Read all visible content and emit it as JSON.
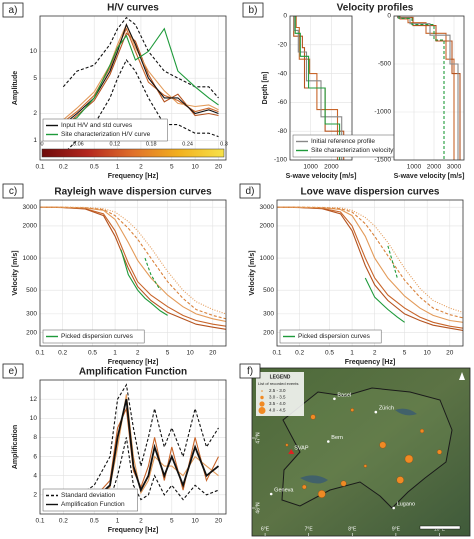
{
  "chart_data": [
    {
      "type": "line",
      "label": "a)",
      "title": "H/V curves",
      "xlabel": "Frequency [Hz]",
      "ylabel": "Amplitude",
      "xscale": "log",
      "yscale": "log",
      "xlim": [
        0.1,
        25
      ],
      "ylim": [
        0.6,
        25
      ],
      "xticks": [
        0.1,
        0.2,
        0.5,
        1,
        2,
        5,
        10,
        20
      ],
      "yticks": [
        1,
        2,
        5,
        10
      ],
      "grid": true,
      "legend": "lower left",
      "x": [
        0.2,
        0.3,
        0.5,
        0.8,
        1,
        1.3,
        1.7,
        2.5,
        4,
        6,
        10,
        15,
        20
      ],
      "series": [
        {
          "color": "#c8652a",
          "values": [
            1.6,
            2.1,
            3.2,
            6.5,
            11,
            18,
            10,
            4.5,
            3.2,
            2.8,
            2.1,
            2.3,
            2.1
          ]
        },
        {
          "color": "#b5531f",
          "values": [
            1.4,
            1.9,
            2.8,
            5.5,
            9,
            16,
            13,
            5.5,
            2.7,
            3.3,
            1.9,
            2.0,
            1.9
          ]
        },
        {
          "color": "#e39b5a",
          "values": [
            1.7,
            2.3,
            3.5,
            7,
            12,
            20,
            11,
            6,
            3.6,
            2.6,
            2.4,
            2.5,
            2.2
          ]
        },
        {
          "color": "#111111",
          "style": "dashed",
          "values": [
            4,
            6,
            7,
            12,
            18,
            24,
            20,
            10,
            6,
            5,
            4,
            4,
            3
          ]
        },
        {
          "color": "#111111",
          "style": "dashed",
          "values": [
            0.7,
            1,
            1.5,
            3,
            5,
            8,
            6,
            3,
            1.5,
            1.5,
            1.2,
            1.2,
            1.1
          ]
        },
        {
          "name": "Input H/V and std curves",
          "color": "#111111",
          "values": [
            1.5,
            2,
            3,
            6,
            10,
            20,
            12,
            5,
            3,
            3,
            2,
            2.2,
            2
          ]
        },
        {
          "name": "Site characterization H/V curve",
          "color": "#1e9a3a",
          "values": [
            1.5,
            1.8,
            3,
            7,
            11,
            15,
            8,
            10,
            18,
            6,
            4,
            3,
            2.5
          ]
        }
      ],
      "colorbar": {
        "colors": [
          "#6e0b0b",
          "#b3261e",
          "#e0702a",
          "#f2b01e",
          "#f7e24a"
        ],
        "lim": [
          0,
          0.3
        ],
        "ticks": [
          0,
          0.06,
          0.12,
          0.18,
          0.24,
          0.3
        ]
      }
    },
    {
      "type": "line",
      "label": "b)",
      "title": "Velocity profiles",
      "xlabel": "S-wave velocity [m/s]",
      "ylabel": "Depth [m]",
      "xlim": [
        0,
        3000
      ],
      "ylim": [
        -100,
        0
      ],
      "xticks": [
        1000,
        2000
      ],
      "yticks": [
        -100,
        -80,
        -60,
        -40,
        -20,
        0
      ],
      "grid": true,
      "legend": "lower left",
      "series": [
        {
          "color": "#c8652a",
          "x": [
            300,
            300,
            450,
            450,
            950,
            950,
            1300,
            1300,
            2300,
            2300
          ],
          "values": [
            0,
            -8,
            -8,
            -30,
            -30,
            -40,
            -40,
            -65,
            -65,
            -100
          ]
        },
        {
          "color": "#b5531f",
          "x": [
            180,
            180,
            600,
            600,
            700,
            700,
            1700,
            1700,
            2600,
            2600
          ],
          "values": [
            0,
            -14,
            -14,
            -22,
            -22,
            -50,
            -50,
            -80,
            -80,
            -100
          ]
        },
        {
          "name": "Initial reference profile",
          "color": "#888888",
          "x": [
            200,
            200,
            400,
            400,
            800,
            800,
            1500,
            1500,
            2500,
            2500
          ],
          "values": [
            0,
            -10,
            -10,
            -25,
            -25,
            -45,
            -45,
            -70,
            -70,
            -100
          ]
        },
        {
          "name": "Site characterization velocity profiles",
          "color": "#1e9a3a",
          "x": [
            250,
            250,
            500,
            500,
            900,
            900,
            1700,
            1700,
            2400,
            2400
          ],
          "values": [
            0,
            -12,
            -12,
            -28,
            -28,
            -50,
            -50,
            -75,
            -75,
            -100
          ]
        }
      ]
    },
    {
      "type": "line",
      "xlabel": "S-wave velocity [m/s]",
      "xlim": [
        0,
        3500
      ],
      "ylim": [
        -1500,
        0
      ],
      "xticks": [
        1000,
        2000,
        3000
      ],
      "yticks": [
        -1500,
        -1000,
        -500,
        0
      ],
      "grid": true,
      "series": [
        {
          "color": "#c8652a",
          "x": [
            300,
            300,
            700,
            700,
            1600,
            1600,
            2600,
            2600,
            3000,
            3000
          ],
          "values": [
            0,
            -30,
            -30,
            -70,
            -70,
            -180,
            -180,
            -450,
            -450,
            -1500
          ]
        },
        {
          "color": "#b5531f",
          "x": [
            180,
            180,
            950,
            950,
            2100,
            2100,
            2900,
            2900,
            3300,
            3300
          ],
          "values": [
            0,
            -15,
            -15,
            -100,
            -100,
            -260,
            -260,
            -600,
            -600,
            -1500
          ]
        },
        {
          "color": "#888888",
          "x": [
            200,
            200,
            800,
            800,
            1800,
            1800,
            2800,
            2800,
            3200,
            3200
          ],
          "values": [
            0,
            -20,
            -20,
            -80,
            -80,
            -200,
            -200,
            -500,
            -500,
            -1500
          ]
        },
        {
          "color": "#1e9a3a",
          "style": "dashed",
          "x": [
            250,
            250,
            900,
            900,
            2000,
            2000,
            2500,
            2500
          ],
          "values": [
            0,
            -25,
            -25,
            -90,
            -90,
            -250,
            -250,
            -1500
          ]
        }
      ]
    },
    {
      "type": "line",
      "label": "c)",
      "title": "Rayleigh wave dispersion curves",
      "xlabel": "Frequency [Hz]",
      "ylabel": "Velocity [m/s]",
      "xscale": "log",
      "yscale": "log",
      "xlim": [
        0.1,
        30
      ],
      "ylim": [
        150,
        3500
      ],
      "xticks": [
        0.1,
        0.2,
        0.5,
        1,
        2,
        5,
        10,
        20
      ],
      "yticks": [
        200,
        300,
        500,
        1000,
        2000,
        3000
      ],
      "grid": true,
      "legend": "lower left",
      "x": [
        0.1,
        0.2,
        0.4,
        0.7,
        1,
        1.5,
        2,
        3,
        5,
        8,
        12,
        20,
        30
      ],
      "series": [
        {
          "color": "#c8652a",
          "values": [
            3000,
            2980,
            2900,
            2600,
            1800,
            900,
            600,
            450,
            350,
            290,
            260,
            240,
            230
          ]
        },
        {
          "color": "#b5531f",
          "values": [
            3000,
            2970,
            2880,
            2500,
            1600,
            800,
            540,
            400,
            310,
            270,
            240,
            225,
            215
          ]
        },
        {
          "color": "#e39b5a",
          "values": [
            3000,
            2990,
            2950,
            2800,
            2300,
            1400,
            950,
            650,
            450,
            350,
            300,
            270,
            255
          ]
        },
        {
          "color": "#d9823b",
          "style": "dashed",
          "values": [
            3000,
            2990,
            2960,
            2850,
            2500,
            1900,
            1500,
            1000,
            600,
            420,
            330,
            290,
            270
          ]
        },
        {
          "color": "#e39b5a",
          "style": "dotted",
          "values": [
            3000,
            2995,
            2980,
            2900,
            2700,
            2200,
            1800,
            1250,
            750,
            500,
            390,
            330,
            300
          ]
        },
        {
          "name": "Picked dispersion curves",
          "color": "#1e9a3a",
          "x": [
            1.2,
            1.5,
            2,
            2.5,
            3,
            4,
            5
          ],
          "values": [
            1200,
            700,
            500,
            420,
            380,
            320,
            290
          ]
        },
        {
          "color": "#1e9a3a",
          "style": "dashed",
          "x": [
            2.5,
            3,
            4
          ],
          "values": [
            1000,
            700,
            500
          ]
        }
      ]
    },
    {
      "type": "line",
      "label": "d)",
      "title": "Love wave dispersion curves",
      "xlabel": "Frequency [Hz]",
      "ylabel": "Velocity [m/s]",
      "xscale": "log",
      "yscale": "log",
      "xlim": [
        0.1,
        30
      ],
      "ylim": [
        150,
        3500
      ],
      "xticks": [
        0.1,
        0.2,
        0.5,
        1,
        2,
        5,
        10,
        20
      ],
      "yticks": [
        200,
        300,
        500,
        1000,
        2000,
        3000
      ],
      "grid": true,
      "legend": "lower left",
      "x": [
        0.1,
        0.2,
        0.4,
        0.7,
        1,
        1.5,
        2,
        3,
        5,
        8,
        12,
        20,
        30
      ],
      "series": [
        {
          "color": "#c8652a",
          "values": [
            3000,
            2980,
            2920,
            2700,
            2000,
            1000,
            650,
            450,
            340,
            280,
            250,
            230,
            220
          ]
        },
        {
          "color": "#b5531f",
          "values": [
            3000,
            2970,
            2900,
            2600,
            1800,
            850,
            560,
            400,
            300,
            260,
            235,
            220,
            210
          ]
        },
        {
          "color": "#e39b5a",
          "values": [
            3000,
            2990,
            2960,
            2850,
            2500,
            1600,
            1000,
            650,
            440,
            340,
            290,
            260,
            250
          ]
        },
        {
          "color": "#d9823b",
          "style": "dashed",
          "values": [
            3000,
            2995,
            2970,
            2900,
            2700,
            2100,
            1600,
            1050,
            620,
            430,
            340,
            295,
            275
          ]
        },
        {
          "color": "#e39b5a",
          "style": "dotted",
          "values": [
            3000,
            2995,
            2985,
            2950,
            2800,
            2400,
            2000,
            1400,
            800,
            520,
            400,
            340,
            310
          ]
        },
        {
          "name": "Picked dispersion curves",
          "color": "#1e9a3a",
          "x": [
            1.5,
            2,
            3,
            4,
            5
          ],
          "values": [
            650,
            430,
            330,
            280,
            250
          ]
        },
        {
          "color": "#1e9a3a",
          "style": "dashed",
          "x": [
            3,
            3.5,
            4
          ],
          "values": [
            1300,
            900,
            650
          ]
        }
      ]
    },
    {
      "type": "line",
      "label": "e)",
      "title": "Amplification Function",
      "xlabel": "Frequency [Hz]",
      "ylabel": "Amplification",
      "xscale": "log",
      "xlim": [
        0.1,
        25
      ],
      "ylim": [
        0,
        14
      ],
      "xticks": [
        0.1,
        0.2,
        0.5,
        1,
        2,
        5,
        10,
        20
      ],
      "yticks": [
        2,
        4,
        6,
        8,
        10,
        12
      ],
      "grid": true,
      "legend": "lower left",
      "x": [
        0.2,
        0.3,
        0.5,
        0.8,
        1,
        1.3,
        1.6,
        2,
        2.5,
        3,
        4,
        5,
        7,
        10,
        14,
        20
      ],
      "series": [
        {
          "color": "#c8652a",
          "values": [
            1,
            1.2,
            1.7,
            3.5,
            9,
            11,
            4.5,
            2.8,
            5,
            8,
            3.5,
            7,
            2.5,
            8,
            3.5,
            6
          ]
        },
        {
          "color": "#e39b5a",
          "values": [
            1,
            1.1,
            1.4,
            2.8,
            7,
            12.5,
            6,
            2.2,
            3.5,
            6,
            5,
            5,
            4,
            6,
            5,
            4
          ]
        },
        {
          "name": "Standard deviation",
          "color": "#111111",
          "style": "dashed",
          "values": [
            1.5,
            1.8,
            3,
            6,
            12,
            13.5,
            9,
            5,
            8,
            11,
            7,
            9,
            6,
            11,
            7,
            9
          ]
        },
        {
          "color": "#111111",
          "style": "dashed",
          "values": [
            0.7,
            0.8,
            1,
            1.5,
            4,
            8,
            3,
            1.5,
            2,
            4,
            2,
            3,
            1.5,
            3,
            2,
            2.5
          ]
        },
        {
          "name": "Amplification Function",
          "color": "#111111",
          "width": 1.8,
          "values": [
            1,
            1.1,
            1.5,
            3,
            8,
            12,
            5,
            2.5,
            4,
            7,
            4,
            6,
            3,
            7,
            4,
            5
          ]
        }
      ]
    },
    {
      "type": "map",
      "label": "f)",
      "xlim": [
        5.7,
        10.7
      ],
      "ylim": [
        45.6,
        48.0
      ],
      "xticks": [
        {
          "value": 6,
          "label": "6°E"
        },
        {
          "value": 7,
          "label": "7°E"
        },
        {
          "value": 8,
          "label": "8°E"
        },
        {
          "value": 9,
          "label": "9°E"
        },
        {
          "value": 10,
          "label": "10°E"
        }
      ],
      "yticks": [
        {
          "value": 46,
          "label": "46°N"
        },
        {
          "value": 47,
          "label": "47°N"
        }
      ],
      "legend_title": "LEGEND",
      "legend_subtitle": "List of recorded events",
      "magnitude_classes": [
        "2.5 - 3.0",
        "3.0 - 3.5",
        "3.5 - 4.0",
        "4.0 - 4.5"
      ],
      "places": [
        {
          "name": "Basel",
          "lon": 7.59,
          "lat": 47.56
        },
        {
          "name": "Zürich",
          "lon": 8.54,
          "lat": 47.37
        },
        {
          "name": "Bern",
          "lon": 7.45,
          "lat": 46.95
        },
        {
          "name": "Geneva",
          "lon": 6.14,
          "lat": 46.2
        },
        {
          "name": "Lugano",
          "lon": 8.95,
          "lat": 46.0
        },
        {
          "name": "SVAP",
          "lon": 6.6,
          "lat": 46.8
        }
      ],
      "events": {
        "lon": [
          6.9,
          7.3,
          7.8,
          8.3,
          8.7,
          9.3,
          9.6,
          6.5,
          7.1,
          8.0,
          9.1,
          10.0
        ],
        "lat": [
          46.3,
          46.2,
          46.35,
          46.6,
          46.9,
          46.7,
          47.1,
          46.9,
          47.3,
          47.4,
          46.4,
          46.8
        ],
        "mag": [
          3.2,
          4.2,
          3.6,
          2.8,
          3.9,
          4.4,
          3.1,
          2.7,
          3.4,
          2.9,
          4.1,
          3.3
        ]
      }
    }
  ]
}
